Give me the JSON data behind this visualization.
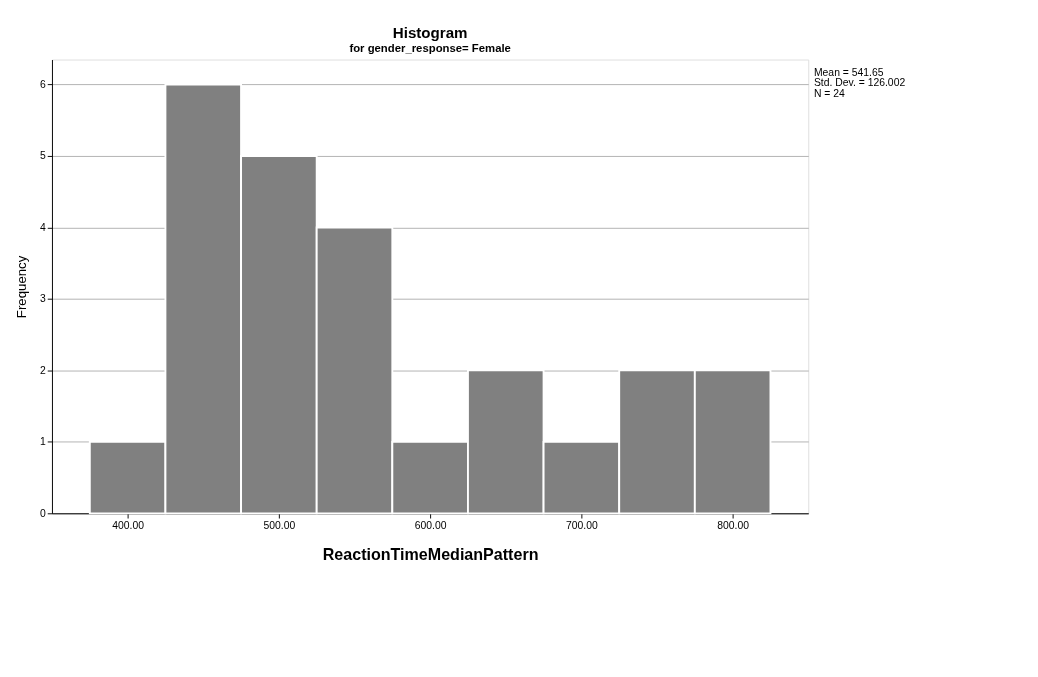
{
  "chart_data": {
    "type": "histogram",
    "title": "Histogram",
    "subtitle": "for gender_response= Female",
    "xlabel": "ReactionTimeMedianPattern",
    "ylabel": "Frequency",
    "bins": [
      375,
      425,
      475,
      525,
      575,
      625,
      675,
      725,
      775,
      825
    ],
    "values": [
      1,
      6,
      5,
      4,
      1,
      2,
      1,
      2,
      2
    ],
    "color": "#808080",
    "xlim": [
      350,
      850
    ],
    "xticks": [
      {
        "value": 400,
        "label": "400.00"
      },
      {
        "value": 500,
        "label": "500.00"
      },
      {
        "value": 600,
        "label": "600.00"
      },
      {
        "value": 700,
        "label": "700.00"
      },
      {
        "value": 800,
        "label": "800.00"
      }
    ],
    "ylim": [
      0,
      6.35
    ],
    "yticks": [
      0,
      1,
      2,
      3,
      4,
      5,
      6
    ],
    "grid": "y",
    "annotations": [
      "Mean = 541.65",
      "Std. Dev. = 126.002",
      "N = 24"
    ]
  }
}
